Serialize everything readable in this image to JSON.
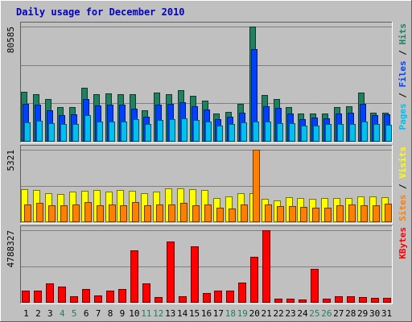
{
  "chart_data": {
    "type": "bar",
    "title": "Daily usage for December 2010",
    "days": [
      "1",
      "2",
      "3",
      "4",
      "5",
      "6",
      "7",
      "8",
      "9",
      "10",
      "11",
      "12",
      "13",
      "14",
      "15",
      "16",
      "17",
      "18",
      "19",
      "20",
      "21",
      "22",
      "23",
      "24",
      "25",
      "26",
      "27",
      "28",
      "29",
      "30",
      "31"
    ],
    "weekend_days": [
      "4",
      "5",
      "11",
      "12",
      "18",
      "19",
      "25",
      "26"
    ],
    "panels": [
      {
        "id": "hits",
        "max_label": "80585",
        "ylim": [
          0,
          80585
        ],
        "right_label": [
          {
            "text": "Pages",
            "color": "#00c0f0"
          },
          {
            "text": " / ",
            "color": "#000000"
          },
          {
            "text": "Files",
            "color": "#0040ff"
          },
          {
            "text": " / ",
            "color": "#000000"
          },
          {
            "text": "Hits",
            "color": "#208060"
          }
        ],
        "series": [
          {
            "name": "Hits",
            "color": "#208060",
            "values": [
              35000,
              33000,
              30000,
              24500,
              24500,
              38000,
              33500,
              34000,
              33500,
              33000,
              22000,
              34500,
              33500,
              36000,
              32000,
              28500,
              20000,
              21000,
              26500,
              80585,
              32500,
              30000,
              24500,
              20000,
              19500,
              20000,
              24000,
              25000,
              34500,
              20500,
              20500
            ]
          },
          {
            "name": "Files",
            "color": "#0040ff",
            "values": [
              26500,
              26000,
              22000,
              18500,
              19000,
              30000,
              25500,
              26000,
              26000,
              23000,
              17500,
              26000,
              26500,
              27500,
              25000,
              22500,
              16000,
              17500,
              20500,
              65000,
              25000,
              23500,
              20000,
              15500,
              17000,
              16500,
              19500,
              20500,
              26500,
              18500,
              19000
            ]
          },
          {
            "name": "Pages",
            "color": "#00c0f0",
            "values": [
              13500,
              14500,
              13000,
              12500,
              12500,
              18500,
              14000,
              14000,
              14000,
              16000,
              12500,
              15000,
              16000,
              16500,
              15000,
              14000,
              11500,
              12500,
              13500,
              14000,
              14000,
              13000,
              13000,
              11500,
              11500,
              12500,
              12500,
              12500,
              14000,
              12500,
              12000
            ]
          }
        ]
      },
      {
        "id": "visits",
        "max_label": "5321",
        "ylim": [
          0,
          5321
        ],
        "right_label": [
          {
            "text": "Sites",
            "color": "#ff8000"
          },
          {
            "text": " / ",
            "color": "#000000"
          },
          {
            "text": "Visits",
            "color": "#ffff00"
          }
        ],
        "series": [
          {
            "name": "Visits",
            "color": "#ffff00",
            "values": [
              2450,
              2350,
              2100,
              2050,
              2250,
              2300,
              2350,
              2250,
              2350,
              2300,
              2150,
              2250,
              2500,
              2500,
              2450,
              2350,
              1800,
              1900,
              2150,
              2150,
              1700,
              1600,
              1850,
              1750,
              1700,
              1750,
              1750,
              1750,
              1900,
              1900,
              1850
            ]
          },
          {
            "name": "Sites",
            "color": "#ff8000",
            "values": [
              1300,
              1400,
              1250,
              1250,
              1300,
              1450,
              1250,
              1300,
              1250,
              1450,
              1250,
              1300,
              1300,
              1400,
              1250,
              1300,
              1050,
              1000,
              1300,
              5321,
              1300,
              1200,
              1200,
              1100,
              1050,
              1050,
              1250,
              1300,
              1250,
              1250,
              1350
            ]
          }
        ]
      },
      {
        "id": "kbytes",
        "max_label": "4788327",
        "ylim": [
          0,
          4788327
        ],
        "right_label": [
          {
            "text": "KBytes",
            "color": "#ff0000"
          }
        ],
        "series": [
          {
            "name": "KBytes",
            "color": "#ff0000",
            "values": [
              800000,
              780000,
              1260000,
              1060000,
              440000,
              930000,
              500000,
              800000,
              880000,
              3470000,
              1260000,
              370000,
              4020000,
              410000,
              3750000,
              660000,
              820000,
              790000,
              1320000,
              3040000,
              4788327,
              260000,
              250000,
              230000,
              2220000,
              250000,
              400000,
              400000,
              390000,
              320000,
              310000
            ]
          }
        ]
      }
    ]
  }
}
